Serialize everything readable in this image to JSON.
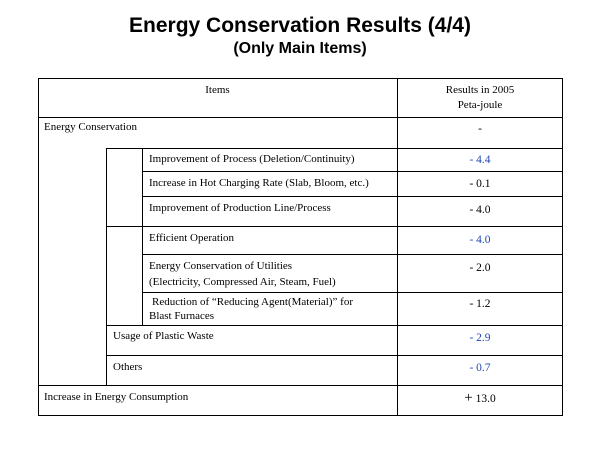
{
  "title": "Energy Conservation Results (4/4)",
  "subtitle": "(Only Main Items)",
  "table": {
    "header": {
      "items": "Items",
      "results_line1": "Results in 2005",
      "results_line2": "Peta-joule"
    },
    "rows": [
      {
        "label": "Energy Conservation",
        "value": "-"
      },
      {
        "label": "Improvement of Process (Deletion/Continuity)",
        "value": "- 4.4"
      },
      {
        "label": "Increase in Hot Charging Rate (Slab, Bloom, etc.)",
        "value": "- 0.1"
      },
      {
        "label": "Improvement of Production Line/Process",
        "value": "- 4.0"
      },
      {
        "label": "Efficient Operation",
        "value": "- 4.0"
      },
      {
        "label_line1": "Energy Conservation of Utilities",
        "label_line2": "(Electricity, Compressed Air, Steam, Fuel)",
        "value": "- 2.0"
      },
      {
        "label_line1": "Reduction of “Reducing Agent(Material)” for",
        "label_line2": "Blast Furnaces",
        "value": "- 1.2"
      },
      {
        "label": "Usage of Plastic Waste",
        "value": "- 2.9"
      },
      {
        "label": "Others",
        "value": "- 0.7"
      },
      {
        "label": "Increase in Energy Consumption",
        "value": "13.0",
        "value_sign": "+"
      }
    ]
  },
  "colors": {
    "accent_value": "#1f49b6",
    "border": "#000000"
  }
}
